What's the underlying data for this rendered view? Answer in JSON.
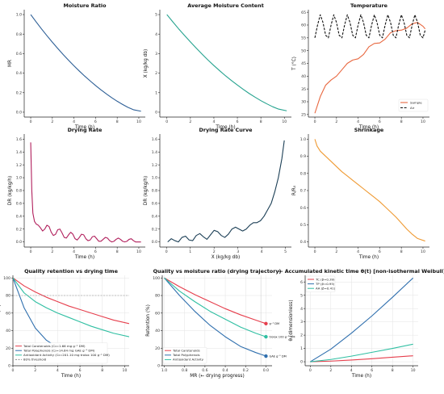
{
  "colors": {
    "mr": "#2d5f96",
    "x": "#26a38f",
    "temp_sample": "#e8673f",
    "temp_air": "#111111",
    "dr": "#b11f5c",
    "drc": "#1c3f56",
    "shrink": "#ef9a33",
    "tc": "#e63e4c",
    "tp": "#2f6fae",
    "aa": "#2fbfa2",
    "threshold": "#8c8c8c"
  },
  "chart_data": [
    {
      "id": "mr",
      "type": "line",
      "title": "Moisture Ratio",
      "xlabel": "Time (h)",
      "ylabel": "MR",
      "xlim": [
        -0.6,
        10.6
      ],
      "ylim": [
        -0.05,
        1.05
      ],
      "xticks": [
        0,
        2,
        4,
        6,
        8,
        10
      ],
      "yticks": [
        0.0,
        0.2,
        0.4,
        0.6,
        0.8,
        1.0
      ],
      "ytick_labels": [
        "0.0",
        "0.2",
        "0.4",
        "0.6",
        "0.8",
        "1.0"
      ],
      "series": [
        {
          "x": [
            0,
            0.5,
            1,
            1.5,
            2,
            2.5,
            3,
            3.5,
            4,
            4.5,
            5,
            5.5,
            6,
            6.5,
            7,
            7.5,
            8,
            8.5,
            9,
            9.5,
            10.2
          ],
          "y": [
            1.0,
            0.925,
            0.853,
            0.784,
            0.717,
            0.653,
            0.591,
            0.532,
            0.475,
            0.421,
            0.369,
            0.32,
            0.273,
            0.229,
            0.187,
            0.148,
            0.112,
            0.079,
            0.049,
            0.025,
            0.01
          ]
        }
      ]
    },
    {
      "id": "x",
      "type": "line",
      "title": "Average Moisture Content",
      "xlabel": "Time (h)",
      "ylabel": "X (kg/kg db)",
      "xlim": [
        -0.6,
        10.6
      ],
      "ylim": [
        -0.25,
        5.25
      ],
      "xticks": [
        0,
        2,
        4,
        6,
        8,
        10
      ],
      "yticks": [
        0,
        1,
        2,
        3,
        4,
        5
      ],
      "ytick_labels": [
        "0",
        "1",
        "2",
        "3",
        "4",
        "5"
      ],
      "series": [
        {
          "x": [
            0,
            0.5,
            1,
            1.5,
            2,
            2.5,
            3,
            3.5,
            4,
            4.5,
            5,
            5.5,
            6,
            6.5,
            7,
            7.5,
            8,
            8.5,
            9,
            9.5,
            10.2
          ],
          "y": [
            5.0,
            4.63,
            4.27,
            3.93,
            3.6,
            3.28,
            2.97,
            2.67,
            2.39,
            2.12,
            1.86,
            1.62,
            1.39,
            1.17,
            0.96,
            0.77,
            0.59,
            0.43,
            0.28,
            0.16,
            0.07
          ]
        }
      ]
    },
    {
      "id": "temp",
      "type": "line",
      "title": "Temperature",
      "xlabel": "Time (h)",
      "ylabel": "T (°C)",
      "xlim": [
        -0.6,
        10.6
      ],
      "ylim": [
        24,
        66
      ],
      "xticks": [
        0,
        2,
        4,
        6,
        8,
        10
      ],
      "yticks": [
        25,
        30,
        35,
        40,
        45,
        50,
        55,
        60,
        65
      ],
      "ytick_labels": [
        "25",
        "30",
        "35",
        "40",
        "45",
        "50",
        "55",
        "60",
        "65"
      ],
      "legend": [
        "Sample",
        "Air"
      ],
      "legend_loc": "lower-right",
      "series": [
        {
          "name": "Sample",
          "x": [
            0,
            0.5,
            1,
            1.5,
            2,
            2.5,
            3,
            3.5,
            4,
            4.5,
            5,
            5.5,
            6,
            6.5,
            7,
            7.5,
            8,
            8.5,
            9,
            9.5,
            10,
            10.2
          ],
          "y": [
            25.5,
            32,
            36.5,
            38.5,
            40,
            42.5,
            45,
            46.3,
            46.8,
            48.5,
            51.5,
            52.8,
            53,
            54.5,
            57,
            57.8,
            58,
            58.8,
            60.5,
            61,
            59.5,
            58.5
          ]
        },
        {
          "name": "Air",
          "x": [
            0,
            0.25,
            0.5,
            0.75,
            1,
            1.25,
            1.5,
            1.75,
            2,
            2.25,
            2.5,
            2.75,
            3,
            3.25,
            3.5,
            3.75,
            4,
            4.25,
            4.5,
            4.75,
            5,
            5.25,
            5.5,
            5.75,
            6,
            6.25,
            6.5,
            6.75,
            7,
            7.25,
            7.5,
            7.75,
            8,
            8.25,
            8.5,
            8.75,
            9,
            9.25,
            9.5,
            9.75,
            10,
            10.2
          ],
          "y": [
            55,
            60,
            64,
            61,
            56,
            55,
            60,
            64,
            61,
            56,
            55,
            60,
            64,
            61,
            56,
            55,
            60,
            64,
            61,
            56,
            55,
            60,
            64,
            61,
            56,
            55,
            60,
            64,
            61,
            56,
            55,
            60,
            64,
            61,
            56,
            55,
            60,
            64,
            61,
            56,
            55,
            58
          ]
        }
      ]
    },
    {
      "id": "dr",
      "type": "line",
      "title": "Drying Rate",
      "xlabel": "Time (h)",
      "ylabel": "DR (kg/kg/h)",
      "xlim": [
        -0.6,
        10.6
      ],
      "ylim": [
        -0.08,
        1.68
      ],
      "xticks": [
        0,
        2,
        4,
        6,
        8,
        10
      ],
      "yticks": [
        0.0,
        0.2,
        0.4,
        0.6,
        0.8,
        1.0,
        1.2,
        1.4,
        1.6
      ],
      "ytick_labels": [
        "0.0",
        "0.2",
        "0.4",
        "0.6",
        "0.8",
        "1.0",
        "1.2",
        "1.4",
        "1.6"
      ],
      "series": [
        {
          "x": [
            0,
            0.1,
            0.2,
            0.35,
            0.5,
            0.7,
            0.9,
            1.1,
            1.3,
            1.5,
            1.7,
            1.9,
            2.1,
            2.3,
            2.5,
            2.7,
            2.9,
            3.1,
            3.3,
            3.5,
            3.7,
            3.9,
            4.1,
            4.3,
            4.5,
            4.7,
            4.9,
            5.1,
            5.3,
            5.5,
            5.7,
            5.9,
            6.1,
            6.3,
            6.5,
            6.7,
            6.9,
            7.1,
            7.3,
            7.5,
            7.7,
            7.9,
            8.1,
            8.3,
            8.5,
            8.7,
            8.9,
            9.1,
            9.3,
            9.5,
            9.7,
            9.9,
            10.2
          ],
          "y": [
            1.55,
            0.8,
            0.45,
            0.32,
            0.28,
            0.26,
            0.22,
            0.17,
            0.2,
            0.26,
            0.24,
            0.15,
            0.1,
            0.12,
            0.19,
            0.2,
            0.14,
            0.07,
            0.06,
            0.11,
            0.15,
            0.12,
            0.05,
            0.03,
            0.07,
            0.12,
            0.11,
            0.05,
            0.02,
            0.03,
            0.08,
            0.09,
            0.05,
            0.01,
            0.01,
            0.04,
            0.07,
            0.06,
            0.02,
            0.0,
            0.01,
            0.04,
            0.06,
            0.04,
            0.01,
            0.0,
            0.01,
            0.04,
            0.05,
            0.02,
            0.0,
            0.0,
            0.0
          ]
        }
      ]
    },
    {
      "id": "drc",
      "type": "line",
      "title": "Drying Rate Curve",
      "xlabel": "X (kg/kg db)",
      "ylabel": "DR (kg/kg/h)",
      "xlim": [
        -0.28,
        5.25
      ],
      "ylim": [
        -0.08,
        1.68
      ],
      "xticks": [
        0,
        1,
        2,
        3,
        4,
        5
      ],
      "yticks": [
        0.0,
        0.2,
        0.4,
        0.6,
        0.8,
        1.0,
        1.2,
        1.4,
        1.6
      ],
      "ytick_labels": [
        "0.0",
        "0.2",
        "0.4",
        "0.6",
        "0.8",
        "1.0",
        "1.2",
        "1.4",
        "1.6"
      ],
      "series": [
        {
          "x": [
            0.05,
            0.2,
            0.35,
            0.5,
            0.65,
            0.8,
            0.95,
            1.1,
            1.25,
            1.4,
            1.55,
            1.7,
            1.85,
            2.0,
            2.15,
            2.3,
            2.45,
            2.6,
            2.75,
            2.9,
            3.05,
            3.2,
            3.35,
            3.5,
            3.65,
            3.8,
            3.95,
            4.1,
            4.25,
            4.4,
            4.55,
            4.7,
            4.85,
            4.95
          ],
          "y": [
            0.0,
            0.05,
            0.02,
            0.0,
            0.07,
            0.09,
            0.03,
            0.02,
            0.1,
            0.13,
            0.08,
            0.04,
            0.11,
            0.18,
            0.16,
            0.1,
            0.07,
            0.12,
            0.2,
            0.23,
            0.2,
            0.17,
            0.2,
            0.26,
            0.3,
            0.3,
            0.33,
            0.4,
            0.5,
            0.6,
            0.78,
            1.0,
            1.3,
            1.58
          ]
        }
      ]
    },
    {
      "id": "shrink",
      "type": "line",
      "title": "Shrinkage",
      "xlabel": "Time (h)",
      "ylabel": "R/R₀",
      "xlim": [
        -0.6,
        10.6
      ],
      "ylim": [
        0.37,
        1.03
      ],
      "xticks": [
        0,
        2,
        4,
        6,
        8,
        10
      ],
      "yticks": [
        0.4,
        0.5,
        0.6,
        0.7,
        0.8,
        0.9,
        1.0
      ],
      "ytick_labels": [
        "0.4",
        "0.5",
        "0.6",
        "0.7",
        "0.8",
        "0.9",
        "1.0"
      ],
      "series": [
        {
          "x": [
            0,
            0.2,
            0.5,
            1,
            1.5,
            2,
            2.5,
            3,
            3.5,
            4,
            4.5,
            5,
            5.5,
            6,
            6.5,
            7,
            7.5,
            8,
            8.5,
            9,
            9.5,
            10.2
          ],
          "y": [
            1.0,
            0.96,
            0.93,
            0.9,
            0.87,
            0.84,
            0.81,
            0.785,
            0.76,
            0.735,
            0.71,
            0.685,
            0.66,
            0.635,
            0.605,
            0.575,
            0.545,
            0.51,
            0.475,
            0.445,
            0.42,
            0.405
          ]
        }
      ]
    },
    {
      "id": "quality_time",
      "type": "line",
      "title": "Quality retention vs drying time",
      "xlabel": "Time (h)",
      "ylabel": "Retention (%)",
      "xlim": [
        0,
        10.4
      ],
      "ylim": [
        0,
        103
      ],
      "xticks": [
        0,
        2,
        4,
        6,
        8,
        10
      ],
      "yticks": [
        0,
        20,
        40,
        60,
        80,
        100
      ],
      "ytick_labels": [
        "0",
        "20",
        "40",
        "60",
        "80",
        "100"
      ],
      "threshold": 80,
      "legend_loc": "lower-left",
      "series": [
        {
          "name": "Total Carotenoids (C₀=1.66 mg g⁻¹ DM)",
          "x": [
            0,
            1,
            2,
            3,
            4,
            5,
            6,
            7,
            8,
            9,
            10.4
          ],
          "y": [
            100,
            91,
            84,
            78,
            73,
            68,
            64,
            60,
            56,
            52,
            48
          ]
        },
        {
          "name": "Total Polyphenols (C₀=14.64 mg GAE g⁻¹ DM)",
          "x": [
            0,
            1,
            2,
            3,
            4,
            5,
            6,
            7,
            7.5
          ],
          "y": [
            100,
            66,
            43,
            29,
            21,
            16,
            13,
            12,
            11
          ]
        },
        {
          "name": "Antioxidant Activity (C₀=201.10 mg trolox 100 g⁻¹ DM)",
          "x": [
            0,
            1,
            2,
            3,
            4,
            5,
            6,
            7,
            8,
            9,
            10.4
          ],
          "y": [
            100,
            83,
            73,
            66,
            60,
            55,
            50,
            45,
            41,
            37,
            33
          ]
        },
        {
          "name": "80% threshold",
          "x": [
            0,
            10.4
          ],
          "y": [
            80,
            80
          ]
        }
      ]
    },
    {
      "id": "quality_mr",
      "type": "line",
      "title": "Quality vs moisture ratio (drying trajectory)",
      "xlabel": "MR  (← drying progress)",
      "ylabel": "Retention (%)",
      "xlim": [
        1.02,
        -0.06
      ],
      "ylim": [
        0,
        103
      ],
      "xticks": [
        1.0,
        0.8,
        0.6,
        0.4,
        0.2,
        0.0
      ],
      "xtick_labels": [
        "1.0",
        "0.8",
        "0.6",
        "0.4",
        "0.2",
        "0.0"
      ],
      "yticks": [
        0,
        20,
        40,
        60,
        80,
        100
      ],
      "ytick_labels": [
        "0",
        "20",
        "40",
        "60",
        "80",
        "100"
      ],
      "legend_loc": "lower-left",
      "series": [
        {
          "name": "Total Carotenoids",
          "x": [
            1.0,
            0.85,
            0.7,
            0.55,
            0.4,
            0.25,
            0.1,
            0.0
          ],
          "y": [
            100,
            90,
            81,
            73,
            65,
            58,
            52,
            48
          ]
        },
        {
          "name": "Total Polyphenols",
          "x": [
            1.0,
            0.85,
            0.7,
            0.55,
            0.4,
            0.25,
            0.1,
            0.0
          ],
          "y": [
            100,
            80,
            62,
            46,
            33,
            22,
            15,
            11
          ]
        },
        {
          "name": "Antioxidant Activity",
          "x": [
            1.0,
            0.85,
            0.7,
            0.55,
            0.4,
            0.25,
            0.1,
            0.0
          ],
          "y": [
            100,
            85,
            73,
            62,
            53,
            44,
            37,
            33
          ]
        }
      ],
      "end_labels": [
        {
          "series": "Total Carotenoids",
          "text": "g⁻¹ DM"
        },
        {
          "series": "Antioxidant Activity",
          "text": "trolox 100 g⁻¹ DM"
        },
        {
          "series": "Total Polyphenols",
          "text": "GAE g⁻¹ DM"
        }
      ]
    },
    {
      "id": "kinetic",
      "type": "line",
      "title": "— Accumulated kinetic time θ(t)  [non-isothermal Weibull]",
      "xlabel": "Time (h)",
      "ylabel": "θ  (dimensionless)",
      "xlim": [
        -0.5,
        10.5
      ],
      "ylim": [
        -0.3,
        6.5
      ],
      "xticks": [
        0,
        2,
        4,
        6,
        8,
        10
      ],
      "yticks": [
        0,
        1,
        2,
        3,
        4,
        5,
        6
      ],
      "ytick_labels": [
        "0",
        "1",
        "2",
        "3",
        "4",
        "5",
        "6"
      ],
      "legend_loc": "upper-left",
      "series": [
        {
          "name": "TC  (β=0.39)",
          "x": [
            0,
            2,
            4,
            6,
            8,
            10
          ],
          "y": [
            0,
            0.05,
            0.13,
            0.23,
            0.34,
            0.45
          ]
        },
        {
          "name": "TP  (β=0.95)",
          "x": [
            0,
            2,
            4,
            6,
            8,
            10
          ],
          "y": [
            0,
            0.95,
            2.15,
            3.45,
            4.85,
            6.3
          ]
        },
        {
          "name": "AA  (β=0.41)",
          "x": [
            0,
            2,
            4,
            6,
            8,
            10
          ],
          "y": [
            0,
            0.17,
            0.42,
            0.71,
            1.0,
            1.32
          ]
        }
      ]
    }
  ]
}
